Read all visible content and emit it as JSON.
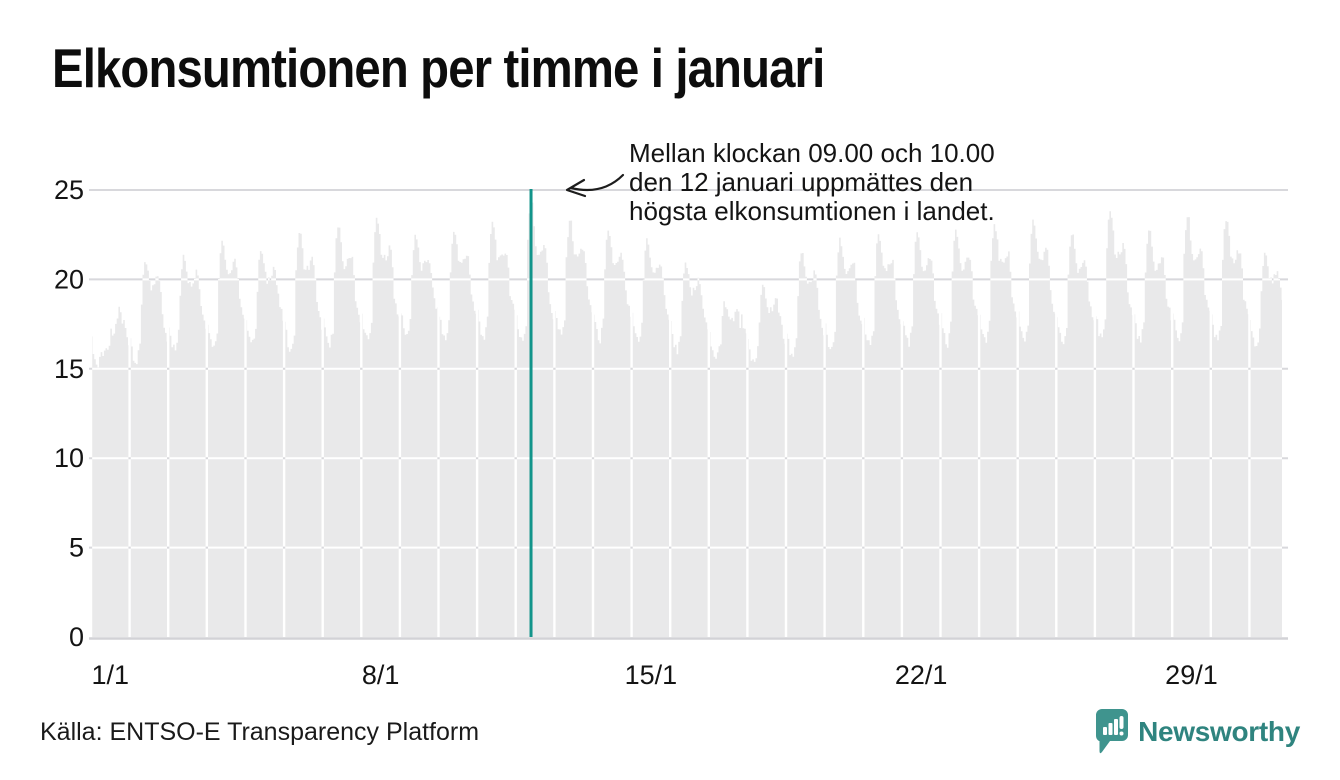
{
  "title": "Elkonsumtionen per timme i januari",
  "annotation": {
    "lines": [
      "Mellan klockan 09.00 och 10.00",
      "den 12 januari uppmättes den",
      "högsta elkonsumtionen i landet."
    ]
  },
  "source": "Källa: ENTSO-E Transparency Platform",
  "brand": {
    "name": "Newsworthy"
  },
  "colors": {
    "area": "#e9e9ea",
    "grid_outside": "#d8d8dc",
    "grid_inside_area": "#ffffff",
    "baseline": "#d2d2d6",
    "highlight_line": "#12948a",
    "text": "#141414",
    "brand_teal": "#3f948e",
    "brand_text_teal": "#2f847f"
  },
  "chart_data": {
    "type": "area",
    "title": "Elkonsumtionen per timme i januari",
    "xlabel": "",
    "ylabel": "",
    "ylim": [
      0,
      25
    ],
    "y_ticks": [
      0,
      5,
      10,
      15,
      20,
      25
    ],
    "x_tick_days": [
      1,
      8,
      15,
      22,
      29
    ],
    "x_tick_labels": [
      "1/1",
      "8/1",
      "15/1",
      "22/1",
      "29/1"
    ],
    "days_in_month": 31,
    "resolution": "hourly",
    "grid": true,
    "legend": "none",
    "highlight": {
      "day": 12,
      "hour_start": 9,
      "hour_end": 10,
      "value": 24.5
    },
    "daily_profiles": [
      {
        "day": 1,
        "night_min": 15.1,
        "morning_peak": 16.1,
        "midday_dip": 16.7,
        "evening_peak": 18.4
      },
      {
        "day": 2,
        "night_min": 15.3,
        "morning_peak": 21.0,
        "midday_dip": 19.4,
        "evening_peak": 20.2
      },
      {
        "day": 3,
        "night_min": 16.0,
        "morning_peak": 21.4,
        "midday_dip": 19.7,
        "evening_peak": 20.5
      },
      {
        "day": 4,
        "night_min": 16.2,
        "morning_peak": 22.2,
        "midday_dip": 20.3,
        "evening_peak": 21.0
      },
      {
        "day": 5,
        "night_min": 16.4,
        "morning_peak": 21.6,
        "midday_dip": 19.9,
        "evening_peak": 20.7
      },
      {
        "day": 6,
        "night_min": 16.0,
        "morning_peak": 22.6,
        "midday_dip": 20.5,
        "evening_peak": 21.1
      },
      {
        "day": 7,
        "night_min": 16.2,
        "morning_peak": 22.9,
        "midday_dip": 20.7,
        "evening_peak": 21.4
      },
      {
        "day": 8,
        "night_min": 16.5,
        "morning_peak": 23.4,
        "midday_dip": 21.1,
        "evening_peak": 21.7
      },
      {
        "day": 9,
        "night_min": 16.8,
        "morning_peak": 22.5,
        "midday_dip": 20.6,
        "evening_peak": 21.2
      },
      {
        "day": 10,
        "night_min": 16.6,
        "morning_peak": 22.7,
        "midday_dip": 20.8,
        "evening_peak": 21.4
      },
      {
        "day": 11,
        "night_min": 16.7,
        "morning_peak": 23.2,
        "midday_dip": 21.0,
        "evening_peak": 21.6
      },
      {
        "day": 12,
        "night_min": 16.5,
        "morning_peak": 24.5,
        "midday_dip": 21.4,
        "evening_peak": 22.0
      },
      {
        "day": 13,
        "night_min": 16.8,
        "morning_peak": 23.3,
        "midday_dip": 21.2,
        "evening_peak": 21.8
      },
      {
        "day": 14,
        "night_min": 16.6,
        "morning_peak": 22.7,
        "midday_dip": 20.7,
        "evening_peak": 21.3
      },
      {
        "day": 15,
        "night_min": 16.4,
        "morning_peak": 22.3,
        "midday_dip": 20.3,
        "evening_peak": 20.9
      },
      {
        "day": 16,
        "night_min": 16.0,
        "morning_peak": 20.9,
        "midday_dip": 19.2,
        "evening_peak": 19.9
      },
      {
        "day": 17,
        "night_min": 15.4,
        "morning_peak": 18.8,
        "midday_dip": 17.6,
        "evening_peak": 18.3
      },
      {
        "day": 18,
        "night_min": 15.2,
        "morning_peak": 19.7,
        "midday_dip": 18.2,
        "evening_peak": 18.9
      },
      {
        "day": 19,
        "night_min": 15.6,
        "morning_peak": 21.5,
        "midday_dip": 19.6,
        "evening_peak": 20.4
      },
      {
        "day": 20,
        "night_min": 16.0,
        "morning_peak": 22.3,
        "midday_dip": 20.2,
        "evening_peak": 20.9
      },
      {
        "day": 21,
        "night_min": 16.2,
        "morning_peak": 22.5,
        "midday_dip": 20.4,
        "evening_peak": 21.0
      },
      {
        "day": 22,
        "night_min": 16.3,
        "morning_peak": 22.6,
        "midday_dip": 20.6,
        "evening_peak": 21.2
      },
      {
        "day": 23,
        "night_min": 16.4,
        "morning_peak": 22.8,
        "midday_dip": 20.7,
        "evening_peak": 21.3
      },
      {
        "day": 24,
        "night_min": 16.5,
        "morning_peak": 23.1,
        "midday_dip": 20.9,
        "evening_peak": 21.5
      },
      {
        "day": 25,
        "night_min": 16.6,
        "morning_peak": 23.3,
        "midday_dip": 21.0,
        "evening_peak": 21.6
      },
      {
        "day": 26,
        "night_min": 16.4,
        "morning_peak": 22.5,
        "midday_dip": 20.5,
        "evening_peak": 21.1
      },
      {
        "day": 27,
        "night_min": 16.6,
        "morning_peak": 23.8,
        "midday_dip": 21.3,
        "evening_peak": 21.9
      },
      {
        "day": 28,
        "night_min": 16.5,
        "morning_peak": 22.7,
        "midday_dip": 20.6,
        "evening_peak": 21.2
      },
      {
        "day": 29,
        "night_min": 16.6,
        "morning_peak": 23.5,
        "midday_dip": 21.1,
        "evening_peak": 21.7
      },
      {
        "day": 30,
        "night_min": 16.5,
        "morning_peak": 23.3,
        "midday_dip": 21.0,
        "evening_peak": 21.6
      },
      {
        "day": 31,
        "night_min": 16.2,
        "morning_peak": 21.5,
        "midday_dip": 19.9,
        "evening_peak": 20.4,
        "end_hour": 21
      }
    ]
  }
}
